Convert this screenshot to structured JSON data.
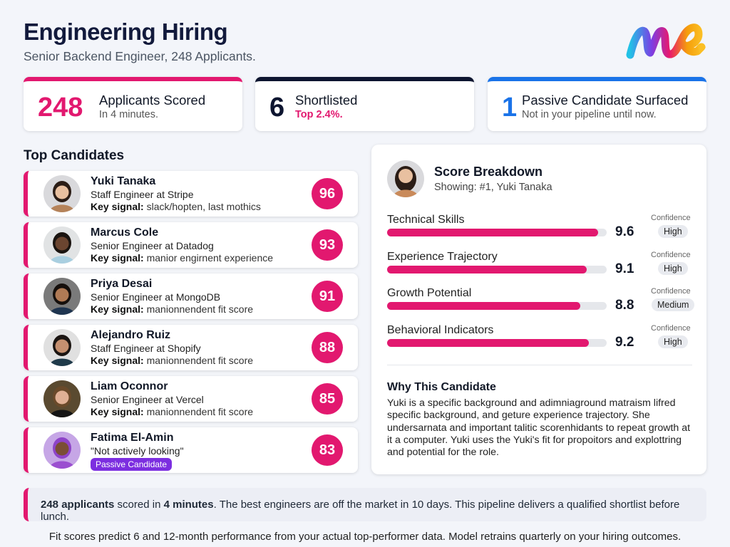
{
  "header": {
    "title": "Engineering Hiring",
    "subtitle": "Senior Backend Engineer, 248 Applicants.",
    "logo_text": "me"
  },
  "stats": [
    {
      "value": "248",
      "label": "Applicants Scored",
      "detail": "In 4 minutes.",
      "color": "#e2186f"
    },
    {
      "value": "6",
      "label": "Shortlisted",
      "detail": "Top 2.4%.",
      "color": "#0d1530"
    },
    {
      "value": "1",
      "label": "Passive Candidate Surfaced",
      "detail": "Not in your pipeline until now.",
      "color": "#1a73e8"
    }
  ],
  "top_candidates": {
    "title": "Top Candidates",
    "key_signal_label": "Key signal:",
    "items": [
      {
        "name": "Yuki Tanaka",
        "title": "Staff Engineer at Stripe",
        "signal": "slack/hopten, last mothics",
        "score": "96"
      },
      {
        "name": "Marcus Cole",
        "title": "Senior Engineer at Datadog",
        "signal": "manior engirnent experience",
        "score": "93"
      },
      {
        "name": "Priya Desai",
        "title": "Senior Engineer at MongoDB",
        "signal": "manionnendent fit score",
        "score": "91"
      },
      {
        "name": "Alejandro Ruiz",
        "title": "Staff Engineer at Shopify",
        "signal": "manionnendent fit score",
        "score": "88"
      },
      {
        "name": "Liam Oconnor",
        "title": "Senior Engineer at Vercel",
        "signal": "manionnendent fit score",
        "score": "85"
      },
      {
        "name": "Fatima El-Amin",
        "title": "\"Not actively looking\"",
        "badge": "Passive Candidate",
        "score": "83"
      }
    ]
  },
  "breakdown": {
    "title": "Score Breakdown",
    "showing": "Showing: #1, Yuki Tanaka",
    "confidence_label": "Confidence",
    "max": 10,
    "metrics": [
      {
        "label": "Technical Skills",
        "value": 9.6,
        "display": "9.6",
        "confidence": "High"
      },
      {
        "label": "Experience Trajectory",
        "value": 9.1,
        "display": "9.1",
        "confidence": "High"
      },
      {
        "label": "Growth Potential",
        "value": 8.8,
        "display": "8.8",
        "confidence": "Medium"
      },
      {
        "label": "Behavioral Indicators",
        "value": 9.2,
        "display": "9.2",
        "confidence": "High"
      }
    ],
    "why_title": "Why This Candidate",
    "why_text": "Yuki is a specific background and adimniaground matraism lifred specific background, and geture experience trajectory. She undersarnata and important talitic scorenhidants to repeat growth at it a computer. Yuki uses the Yuki's fit for propoitors and explottring and potential for the role."
  },
  "banner": {
    "bold1": "248 applicants",
    "t1": " scored in ",
    "bold2": "4 minutes",
    "t2": ". The best engineers are off the market in 10 days. This pipeline delivers a qualified shortlist before lunch."
  },
  "footer": "Fit scores predict 6 and 12-month performance from your actual top-performer data. Model retrains quarterly on your hiring outcomes."
}
